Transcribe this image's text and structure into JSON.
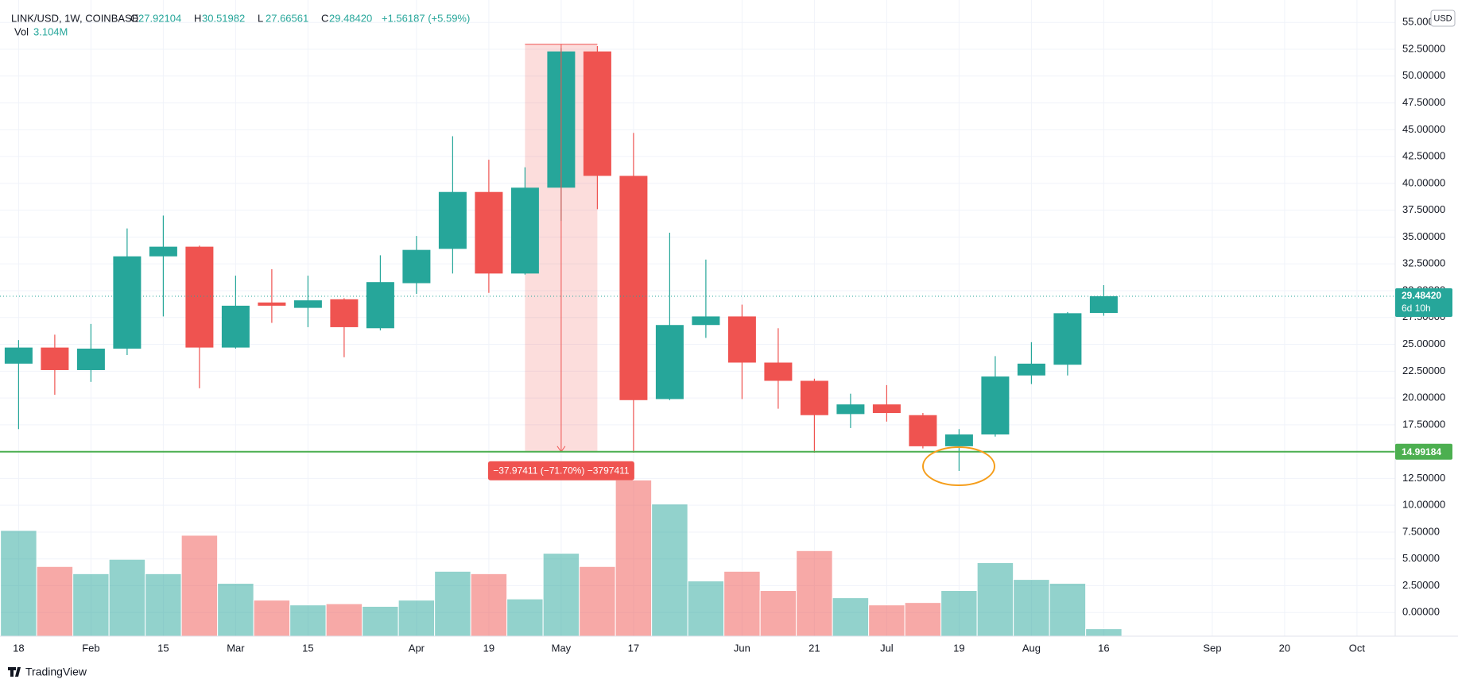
{
  "header": {
    "symbol": "LINK/USD, 1W, COINBASE",
    "o_label": "O",
    "o": "27.92104",
    "h_label": "H",
    "h": "30.51982",
    "l_label": "L",
    "l": "27.66561",
    "c_label": "C",
    "c": "29.48420",
    "change": "+1.56187 (+5.59%)",
    "vol_label": "Vol",
    "vol": "3.104M"
  },
  "brand": "TradingView",
  "chart_data": {
    "type": "candlestick",
    "currency": "USD",
    "up_color": "#26a69a",
    "down_color": "#ef5350",
    "open": [
      23.2,
      24.7,
      22.6,
      24.6,
      33.2,
      34.1,
      24.7,
      28.9,
      28.4,
      29.2,
      26.5,
      30.7,
      33.9,
      39.2,
      31.6,
      39.6,
      52.3,
      40.7,
      19.9,
      26.8,
      27.6,
      23.3,
      21.6,
      18.5,
      19.4,
      18.4,
      15.5,
      16.6,
      22.1,
      23.1,
      27.92104
    ],
    "high": [
      25.4,
      25.9,
      26.9,
      35.8,
      37.0,
      34.2,
      31.4,
      32.0,
      31.4,
      29.3,
      33.3,
      35.1,
      44.4,
      42.2,
      41.5,
      52.6,
      52.8,
      44.7,
      35.4,
      32.9,
      28.7,
      26.5,
      21.8,
      20.4,
      21.2,
      18.6,
      17.1,
      23.9,
      25.2,
      28.0,
      30.51982
    ],
    "low": [
      17.1,
      20.3,
      21.5,
      24.0,
      27.6,
      20.9,
      24.6,
      27.0,
      26.6,
      23.8,
      26.3,
      29.7,
      31.6,
      29.8,
      31.5,
      36.5,
      37.6,
      14.9,
      19.8,
      25.6,
      19.9,
      19.0,
      14.9,
      17.2,
      17.8,
      15.3,
      13.2,
      16.4,
      21.3,
      22.1,
      27.66561
    ],
    "close": [
      24.7,
      22.6,
      24.6,
      33.2,
      34.1,
      24.7,
      28.6,
      28.6,
      29.1,
      26.6,
      30.8,
      33.8,
      39.2,
      31.6,
      39.6,
      52.3,
      40.7,
      19.8,
      26.8,
      27.6,
      23.3,
      21.6,
      18.4,
      19.4,
      18.6,
      15.5,
      16.6,
      22.0,
      23.2,
      27.9,
      29.4842
    ],
    "volume": [
      44,
      29,
      26,
      32,
      26,
      42,
      22,
      15,
      13,
      13.5,
      12.4,
      15,
      27,
      26,
      15.5,
      34.5,
      29,
      65,
      55,
      23,
      27,
      19,
      35.6,
      16,
      13,
      14,
      19,
      30.6,
      23.6,
      22,
      3.104
    ],
    "volume_lim": [
      0,
      80
    ],
    "ylim": [
      -2.2,
      56.5
    ],
    "yticks": [
      {
        "value": 0,
        "label": "0.00000"
      },
      {
        "value": 2.5,
        "label": "2.50000"
      },
      {
        "value": 5,
        "label": "5.00000"
      },
      {
        "value": 7.5,
        "label": "7.50000"
      },
      {
        "value": 10,
        "label": "10.00000"
      },
      {
        "value": 12.5,
        "label": "12.50000"
      },
      {
        "value": 15,
        "label": "15.00000"
      },
      {
        "value": 17.5,
        "label": "17.50000"
      },
      {
        "value": 20,
        "label": "20.00000"
      },
      {
        "value": 22.5,
        "label": "22.50000"
      },
      {
        "value": 25,
        "label": "25.00000"
      },
      {
        "value": 27.5,
        "label": "27.50000"
      },
      {
        "value": 30,
        "label": "30.00000"
      },
      {
        "value": 32.5,
        "label": "32.50000"
      },
      {
        "value": 35,
        "label": "35.00000"
      },
      {
        "value": 37.5,
        "label": "37.50000"
      },
      {
        "value": 40,
        "label": "40.00000"
      },
      {
        "value": 42.5,
        "label": "42.50000"
      },
      {
        "value": 45,
        "label": "45.00000"
      },
      {
        "value": 47.5,
        "label": "47.50000"
      },
      {
        "value": 50,
        "label": "50.00000"
      },
      {
        "value": 52.5,
        "label": "52.50000"
      },
      {
        "value": 55,
        "label": "55.00000"
      }
    ],
    "xticks": [
      {
        "value": 0,
        "label": "18"
      },
      {
        "value": 2,
        "label": "Feb"
      },
      {
        "value": 4,
        "label": "15"
      },
      {
        "value": 6,
        "label": "Mar"
      },
      {
        "value": 8,
        "label": "15"
      },
      {
        "value": 11,
        "label": "Apr"
      },
      {
        "value": 13,
        "label": "19"
      },
      {
        "value": 15,
        "label": "May"
      },
      {
        "value": 17,
        "label": "17"
      },
      {
        "value": 20,
        "label": "Jun"
      },
      {
        "value": 22,
        "label": "21"
      },
      {
        "value": 24,
        "label": "Jul"
      },
      {
        "value": 26,
        "label": "19"
      },
      {
        "value": 28,
        "label": "Aug"
      },
      {
        "value": 30,
        "label": "16"
      },
      {
        "value": 33,
        "label": "Sep"
      },
      {
        "value": 35,
        "label": "20"
      },
      {
        "value": 37,
        "label": "Oct"
      }
    ],
    "grid": true,
    "last_price": {
      "value": 29.4842,
      "label": "29.48420",
      "countdown": "6d 10h"
    },
    "hline": {
      "value": 14.99184,
      "color": "#4caf50"
    },
    "measure": {
      "top": 52.96595,
      "bottom": 14.99184,
      "start": 14,
      "end": 16,
      "label": "−37.97411 (−71.70%) −3797411"
    }
  }
}
